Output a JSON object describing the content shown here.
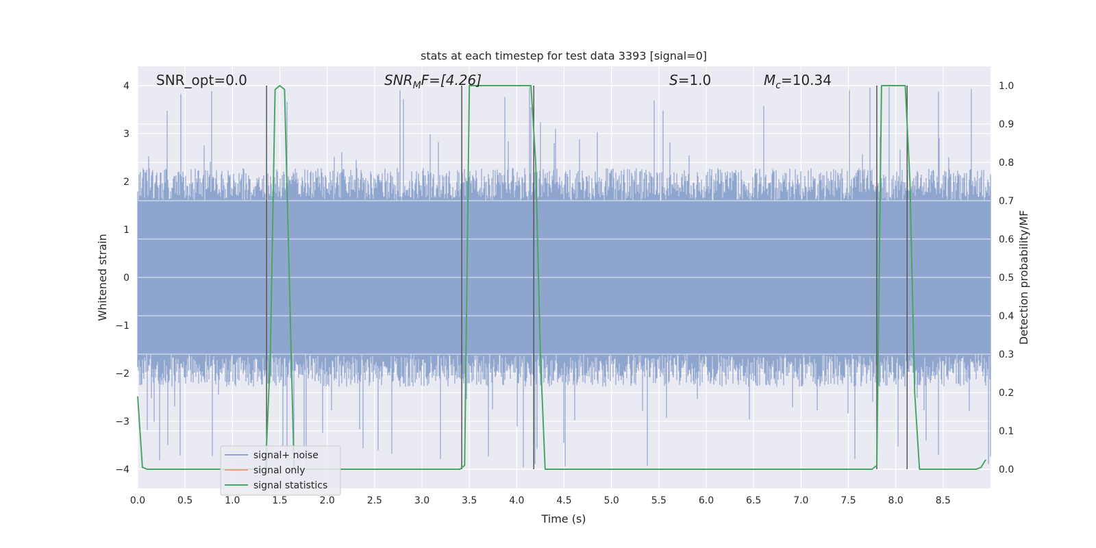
{
  "chart_data": {
    "type": "line",
    "title": "stats at each timestep for test data 3393 [signal=0]",
    "xlabel": "Time (s)",
    "ylabel": "Whitened strain",
    "ylabel_right": "Detection probability/MF",
    "xlim": [
      0.0,
      9.0
    ],
    "ylim": [
      -4.4,
      4.4
    ],
    "ylim_right": [
      -0.05,
      1.05
    ],
    "x_ticks": [
      "0.0",
      "0.5",
      "1.0",
      "1.5",
      "2.0",
      "2.5",
      "3.0",
      "3.5",
      "4.0",
      "4.5",
      "5.0",
      "5.5",
      "6.0",
      "6.5",
      "7.0",
      "7.5",
      "8.0",
      "8.5"
    ],
    "y_ticks": [
      "4",
      "3",
      "2",
      "1",
      "0",
      "−1",
      "−2",
      "−3",
      "−4"
    ],
    "y_ticks_right": [
      "1.0",
      "0.9",
      "0.8",
      "0.7",
      "0.6",
      "0.5",
      "0.4",
      "0.3",
      "0.2",
      "0.1",
      "0.0"
    ],
    "grid": true,
    "legend_position": "lower-left",
    "annotations": {
      "snr_opt": "SNR_opt=0.0",
      "snr_mf_base": "SNR",
      "snr_mf_sub": "M",
      "snr_mf_rest": "F=[4.26]",
      "s_italic": "S",
      "s_rest": "=1.0",
      "mc_base": "M",
      "mc_sub": "c",
      "mc_rest": "=10.34"
    },
    "series": [
      {
        "name": "signal+ noise",
        "color": "#8fa5cf",
        "style": "noise-band",
        "envelope_typical": 1.6,
        "envelope_dense": 2.4,
        "envelope_max": 4.0
      },
      {
        "name": "signal only",
        "color": "#e8a07a",
        "values": []
      },
      {
        "name": "signal statistics",
        "color": "#4aa564",
        "x": [
          0.0,
          0.05,
          0.1,
          0.15,
          1.3,
          1.35,
          1.4,
          1.45,
          1.5,
          1.55,
          1.6,
          1.65,
          1.7,
          3.4,
          3.45,
          3.5,
          3.55,
          4.15,
          4.2,
          4.25,
          4.3,
          4.35,
          7.75,
          7.8,
          7.85,
          7.9,
          8.1,
          8.15,
          8.2,
          8.25,
          8.85,
          8.9,
          8.95
        ],
        "values": [
          0.19,
          0.005,
          0.0,
          0.0,
          0.0,
          0.005,
          0.3,
          0.99,
          1.0,
          0.99,
          0.5,
          0.0,
          0.0,
          0.0,
          0.01,
          1.0,
          1.0,
          1.0,
          0.8,
          0.3,
          0.0,
          0.0,
          0.0,
          0.01,
          1.0,
          1.0,
          1.0,
          0.75,
          0.2,
          0.0,
          0.0,
          0.005,
          0.025
        ]
      }
    ],
    "markers": {
      "color": "#555555",
      "x": [
        1.36,
        3.42,
        4.18,
        7.8,
        8.12
      ],
      "y_top": 4.0,
      "y_bottom": -4.0
    }
  }
}
